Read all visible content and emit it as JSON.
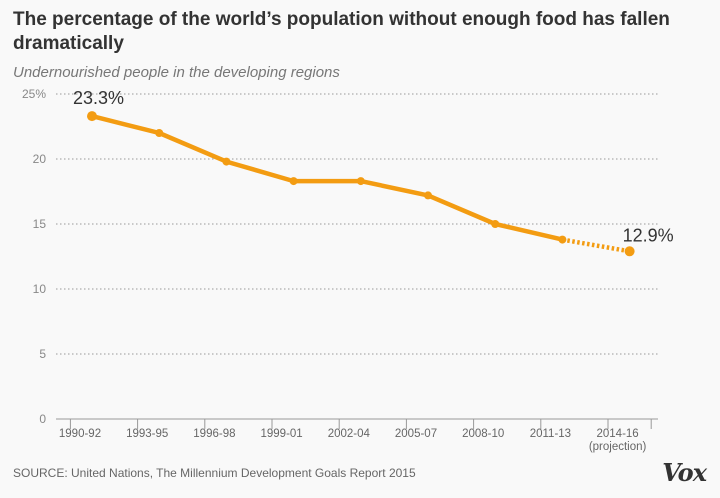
{
  "title": "The percentage of the world’s population without enough food has fallen dramatically",
  "subtitle": "Undernourished people in the developing regions",
  "source": "SOURCE: United Nations, The Millennium Development Goals Report 2015",
  "logo": "Vox",
  "chart_data": {
    "type": "line",
    "categories": [
      "1990-92",
      "1993-95",
      "1996-98",
      "1999-01",
      "2002-04",
      "2005-07",
      "2008-10",
      "2011-13",
      "2014-16"
    ],
    "category_sublabels": {
      "2014-16": "(projection)"
    },
    "values": [
      23.3,
      22.0,
      19.8,
      18.3,
      18.3,
      17.2,
      15.0,
      13.8,
      12.9
    ],
    "projection_from_index": 7,
    "data_labels": [
      {
        "index": 0,
        "text": "23.3%"
      },
      {
        "index": 8,
        "text": "12.9%"
      }
    ],
    "yticks": [
      {
        "value": 25,
        "label": "25%"
      },
      {
        "value": 20,
        "label": "20"
      },
      {
        "value": 15,
        "label": "15"
      },
      {
        "value": 10,
        "label": "10"
      },
      {
        "value": 5,
        "label": "5"
      },
      {
        "value": 0,
        "label": "0"
      }
    ],
    "ylim": [
      0,
      25
    ],
    "grid": true,
    "color": "#f39c12"
  }
}
